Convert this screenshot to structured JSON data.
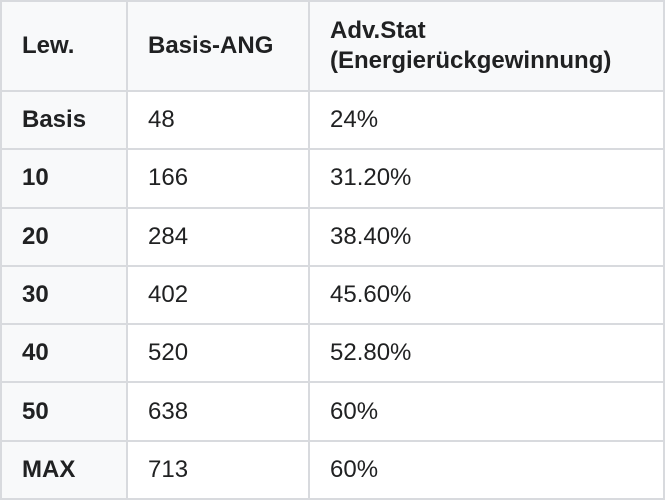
{
  "chart_data": {
    "type": "table",
    "columns": [
      "Lew.",
      "Basis-ANG",
      "Adv.Stat (Energierückgewinnung)"
    ],
    "rows": [
      [
        "Basis",
        "48",
        "24%"
      ],
      [
        "10",
        "166",
        "31.20%"
      ],
      [
        "20",
        "284",
        "38.40%"
      ],
      [
        "30",
        "402",
        "45.60%"
      ],
      [
        "40",
        "520",
        "52.80%"
      ],
      [
        "50",
        "638",
        "60%"
      ],
      [
        "MAX",
        "713",
        "60%"
      ]
    ]
  },
  "colors": {
    "header_bg": "#f8f9fa",
    "cell_bg": "#ffffff",
    "border": "#d8dade",
    "text": "#202122"
  }
}
